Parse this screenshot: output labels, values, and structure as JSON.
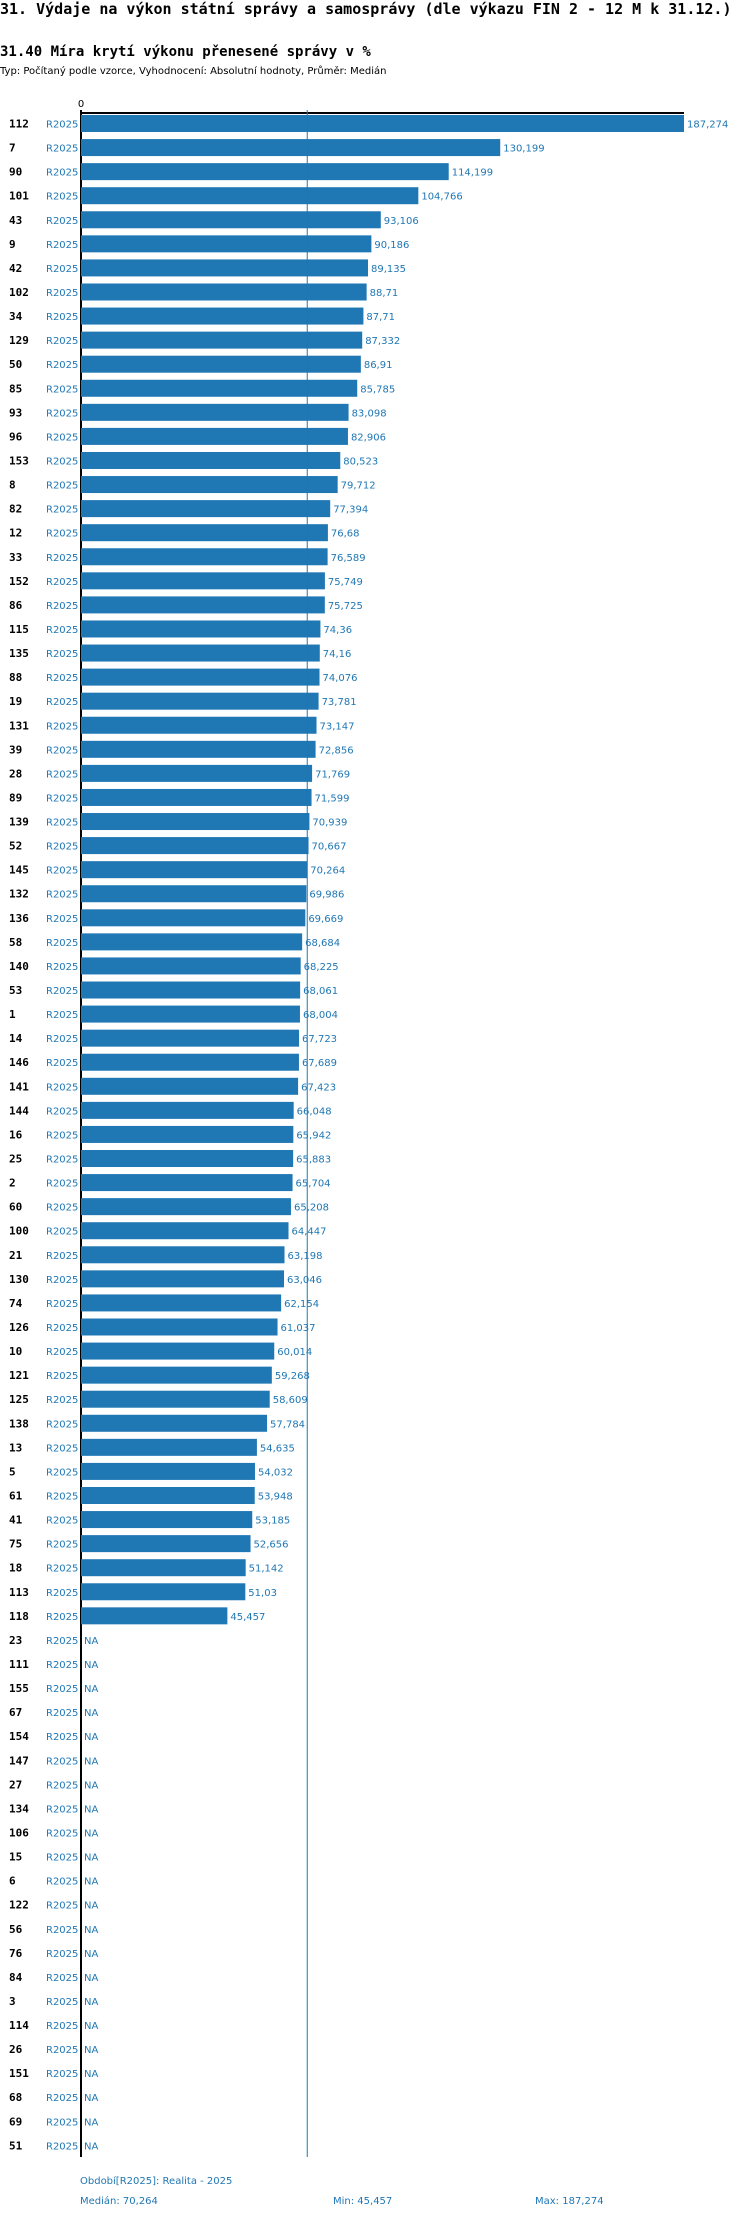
{
  "header": {
    "title": "31. Výdaje na výkon státní správy a samosprávy (dle výkazu FIN 2 - 12 M k 31.12.)",
    "subtitle": "31.40 Míra krytí výkonu přenesené správy v %",
    "type_line": "Typ: Počítaný podle vzorce, Vyhodnocení: Absolutní hodnoty, Průměr: Medián"
  },
  "footer": {
    "period": "Období[R2025]: Realita - 2025",
    "median": "Medián: 70,264",
    "min": "Min: 45,457",
    "max": "Max: 187,274"
  },
  "colors": {
    "bar": "#1f77b4",
    "label": "#1f77b4",
    "axis": "#000000"
  },
  "chart_data": {
    "type": "bar",
    "orientation": "horizontal",
    "axis_zero_label": "0",
    "median": 70.264,
    "xlim": [
      0,
      187.274
    ],
    "rows": [
      {
        "id": "112",
        "period": "R2025",
        "value": 187.274,
        "label": "187,274"
      },
      {
        "id": "7",
        "period": "R2025",
        "value": 130.199,
        "label": "130,199"
      },
      {
        "id": "90",
        "period": "R2025",
        "value": 114.199,
        "label": "114,199"
      },
      {
        "id": "101",
        "period": "R2025",
        "value": 104.766,
        "label": "104,766"
      },
      {
        "id": "43",
        "period": "R2025",
        "value": 93.106,
        "label": "93,106"
      },
      {
        "id": "9",
        "period": "R2025",
        "value": 90.186,
        "label": "90,186"
      },
      {
        "id": "42",
        "period": "R2025",
        "value": 89.135,
        "label": "89,135"
      },
      {
        "id": "102",
        "period": "R2025",
        "value": 88.71,
        "label": "88,71"
      },
      {
        "id": "34",
        "period": "R2025",
        "value": 87.71,
        "label": "87,71"
      },
      {
        "id": "129",
        "period": "R2025",
        "value": 87.332,
        "label": "87,332"
      },
      {
        "id": "50",
        "period": "R2025",
        "value": 86.91,
        "label": "86,91"
      },
      {
        "id": "85",
        "period": "R2025",
        "value": 85.785,
        "label": "85,785"
      },
      {
        "id": "93",
        "period": "R2025",
        "value": 83.098,
        "label": "83,098"
      },
      {
        "id": "96",
        "period": "R2025",
        "value": 82.906,
        "label": "82,906"
      },
      {
        "id": "153",
        "period": "R2025",
        "value": 80.523,
        "label": "80,523"
      },
      {
        "id": "8",
        "period": "R2025",
        "value": 79.712,
        "label": "79,712"
      },
      {
        "id": "82",
        "period": "R2025",
        "value": 77.394,
        "label": "77,394"
      },
      {
        "id": "12",
        "period": "R2025",
        "value": 76.68,
        "label": "76,68"
      },
      {
        "id": "33",
        "period": "R2025",
        "value": 76.589,
        "label": "76,589"
      },
      {
        "id": "152",
        "period": "R2025",
        "value": 75.749,
        "label": "75,749"
      },
      {
        "id": "86",
        "period": "R2025",
        "value": 75.725,
        "label": "75,725"
      },
      {
        "id": "115",
        "period": "R2025",
        "value": 74.36,
        "label": "74,36"
      },
      {
        "id": "135",
        "period": "R2025",
        "value": 74.16,
        "label": "74,16"
      },
      {
        "id": "88",
        "period": "R2025",
        "value": 74.076,
        "label": "74,076"
      },
      {
        "id": "19",
        "period": "R2025",
        "value": 73.781,
        "label": "73,781"
      },
      {
        "id": "131",
        "period": "R2025",
        "value": 73.147,
        "label": "73,147"
      },
      {
        "id": "39",
        "period": "R2025",
        "value": 72.856,
        "label": "72,856"
      },
      {
        "id": "28",
        "period": "R2025",
        "value": 71.769,
        "label": "71,769"
      },
      {
        "id": "89",
        "period": "R2025",
        "value": 71.599,
        "label": "71,599"
      },
      {
        "id": "139",
        "period": "R2025",
        "value": 70.939,
        "label": "70,939"
      },
      {
        "id": "52",
        "period": "R2025",
        "value": 70.667,
        "label": "70,667"
      },
      {
        "id": "145",
        "period": "R2025",
        "value": 70.264,
        "label": "70,264"
      },
      {
        "id": "132",
        "period": "R2025",
        "value": 69.986,
        "label": "69,986"
      },
      {
        "id": "136",
        "period": "R2025",
        "value": 69.669,
        "label": "69,669"
      },
      {
        "id": "58",
        "period": "R2025",
        "value": 68.684,
        "label": "68,684"
      },
      {
        "id": "140",
        "period": "R2025",
        "value": 68.225,
        "label": "68,225"
      },
      {
        "id": "53",
        "period": "R2025",
        "value": 68.061,
        "label": "68,061"
      },
      {
        "id": "1",
        "period": "R2025",
        "value": 68.004,
        "label": "68,004"
      },
      {
        "id": "14",
        "period": "R2025",
        "value": 67.723,
        "label": "67,723"
      },
      {
        "id": "146",
        "period": "R2025",
        "value": 67.689,
        "label": "67,689"
      },
      {
        "id": "141",
        "period": "R2025",
        "value": 67.423,
        "label": "67,423"
      },
      {
        "id": "144",
        "period": "R2025",
        "value": 66.048,
        "label": "66,048"
      },
      {
        "id": "16",
        "period": "R2025",
        "value": 65.942,
        "label": "65,942"
      },
      {
        "id": "25",
        "period": "R2025",
        "value": 65.883,
        "label": "65,883"
      },
      {
        "id": "2",
        "period": "R2025",
        "value": 65.704,
        "label": "65,704"
      },
      {
        "id": "60",
        "period": "R2025",
        "value": 65.208,
        "label": "65,208"
      },
      {
        "id": "100",
        "period": "R2025",
        "value": 64.447,
        "label": "64,447"
      },
      {
        "id": "21",
        "period": "R2025",
        "value": 63.198,
        "label": "63,198"
      },
      {
        "id": "130",
        "period": "R2025",
        "value": 63.046,
        "label": "63,046"
      },
      {
        "id": "74",
        "period": "R2025",
        "value": 62.154,
        "label": "62,154"
      },
      {
        "id": "126",
        "period": "R2025",
        "value": 61.037,
        "label": "61,037"
      },
      {
        "id": "10",
        "period": "R2025",
        "value": 60.014,
        "label": "60,014"
      },
      {
        "id": "121",
        "period": "R2025",
        "value": 59.268,
        "label": "59,268"
      },
      {
        "id": "125",
        "period": "R2025",
        "value": 58.609,
        "label": "58,609"
      },
      {
        "id": "138",
        "period": "R2025",
        "value": 57.784,
        "label": "57,784"
      },
      {
        "id": "13",
        "period": "R2025",
        "value": 54.635,
        "label": "54,635"
      },
      {
        "id": "5",
        "period": "R2025",
        "value": 54.032,
        "label": "54,032"
      },
      {
        "id": "61",
        "period": "R2025",
        "value": 53.948,
        "label": "53,948"
      },
      {
        "id": "41",
        "period": "R2025",
        "value": 53.185,
        "label": "53,185"
      },
      {
        "id": "75",
        "period": "R2025",
        "value": 52.656,
        "label": "52,656"
      },
      {
        "id": "18",
        "period": "R2025",
        "value": 51.142,
        "label": "51,142"
      },
      {
        "id": "113",
        "period": "R2025",
        "value": 51.03,
        "label": "51,03"
      },
      {
        "id": "118",
        "period": "R2025",
        "value": 45.457,
        "label": "45,457"
      },
      {
        "id": "23",
        "period": "R2025",
        "value": null,
        "label": "NA"
      },
      {
        "id": "111",
        "period": "R2025",
        "value": null,
        "label": "NA"
      },
      {
        "id": "155",
        "period": "R2025",
        "value": null,
        "label": "NA"
      },
      {
        "id": "67",
        "period": "R2025",
        "value": null,
        "label": "NA"
      },
      {
        "id": "154",
        "period": "R2025",
        "value": null,
        "label": "NA"
      },
      {
        "id": "147",
        "period": "R2025",
        "value": null,
        "label": "NA"
      },
      {
        "id": "27",
        "period": "R2025",
        "value": null,
        "label": "NA"
      },
      {
        "id": "134",
        "period": "R2025",
        "value": null,
        "label": "NA"
      },
      {
        "id": "106",
        "period": "R2025",
        "value": null,
        "label": "NA"
      },
      {
        "id": "15",
        "period": "R2025",
        "value": null,
        "label": "NA"
      },
      {
        "id": "6",
        "period": "R2025",
        "value": null,
        "label": "NA"
      },
      {
        "id": "122",
        "period": "R2025",
        "value": null,
        "label": "NA"
      },
      {
        "id": "56",
        "period": "R2025",
        "value": null,
        "label": "NA"
      },
      {
        "id": "76",
        "period": "R2025",
        "value": null,
        "label": "NA"
      },
      {
        "id": "84",
        "period": "R2025",
        "value": null,
        "label": "NA"
      },
      {
        "id": "3",
        "period": "R2025",
        "value": null,
        "label": "NA"
      },
      {
        "id": "114",
        "period": "R2025",
        "value": null,
        "label": "NA"
      },
      {
        "id": "26",
        "period": "R2025",
        "value": null,
        "label": "NA"
      },
      {
        "id": "151",
        "period": "R2025",
        "value": null,
        "label": "NA"
      },
      {
        "id": "68",
        "period": "R2025",
        "value": null,
        "label": "NA"
      },
      {
        "id": "69",
        "period": "R2025",
        "value": null,
        "label": "NA"
      },
      {
        "id": "51",
        "period": "R2025",
        "value": null,
        "label": "NA"
      }
    ]
  }
}
